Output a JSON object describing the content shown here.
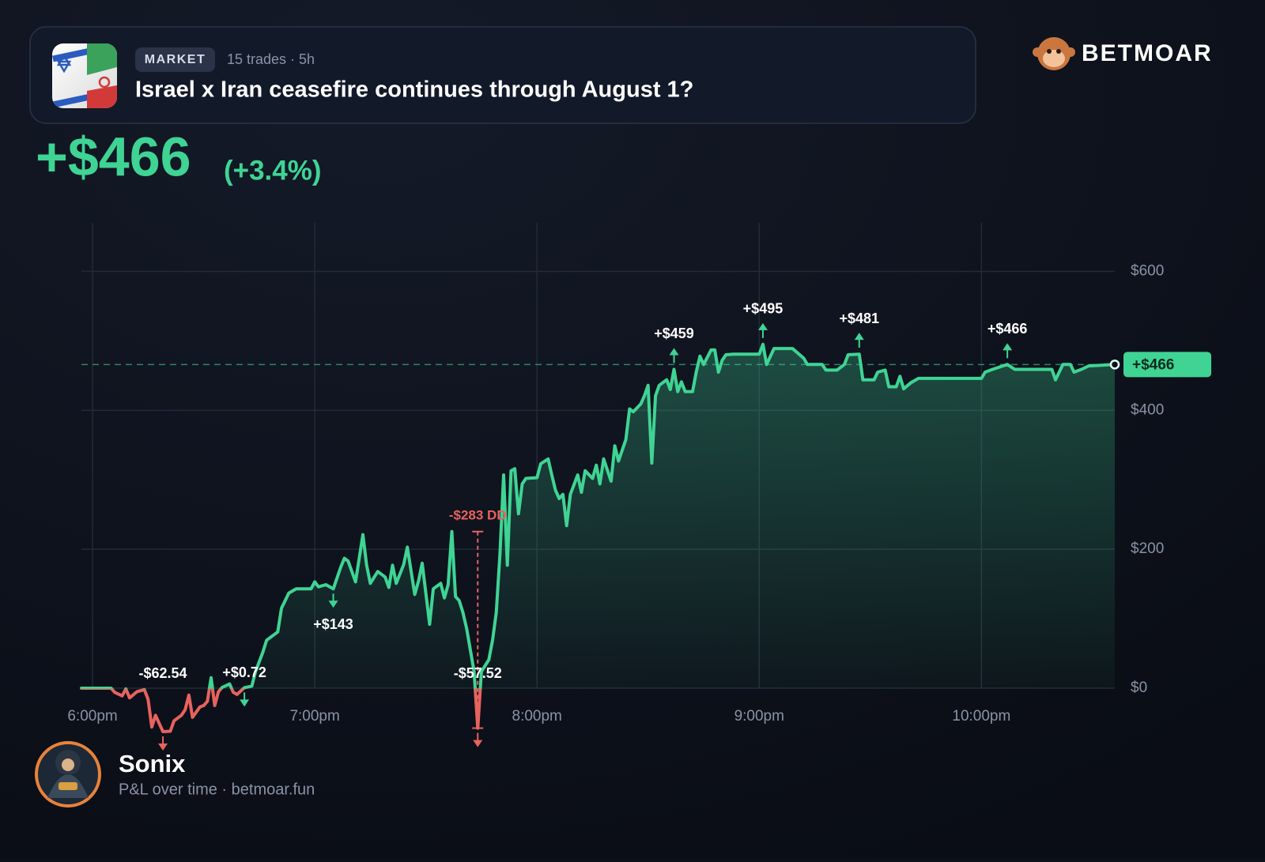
{
  "brand": "BETMOAR",
  "market": {
    "badge": "MARKET",
    "meta": "15 trades · 5h",
    "title": "Israel x Iran ceasefire continues through August 1?"
  },
  "pnl": {
    "amount": "+$466",
    "percent": "(+3.4%)"
  },
  "user": {
    "name": "Sonix",
    "subtitle": "P&L over time · betmoar.fun"
  },
  "chart_data": {
    "type": "line",
    "x": [
      "17:57",
      "18:00",
      "18:05",
      "18:06",
      "18:08",
      "18:09",
      "18:10",
      "18:12",
      "18:14",
      "18:15",
      "18:16",
      "18:17",
      "18:19",
      "18:21",
      "18:22",
      "18:24",
      "18:25",
      "18:26",
      "18:27",
      "18:29",
      "18:30",
      "18:31",
      "18:32",
      "18:33",
      "18:34",
      "18:35",
      "18:37",
      "18:38",
      "18:39",
      "18:41",
      "18:43",
      "18:44",
      "18:46",
      "18:47",
      "18:50",
      "18:51",
      "18:53",
      "18:55",
      "18:59",
      "19:00",
      "19:01",
      "19:03",
      "19:05",
      "19:07",
      "19:08",
      "19:09",
      "19:11",
      "19:13",
      "19:14",
      "19:15",
      "19:17",
      "19:19",
      "19:20",
      "19:21",
      "19:22",
      "19:24",
      "19:25",
      "19:27",
      "19:28",
      "19:29",
      "19:31",
      "19:32",
      "19:34",
      "19:35",
      "19:36",
      "19:37",
      "19:38",
      "19:39",
      "19:40",
      "19:41",
      "19:43",
      "19:44",
      "19:45",
      "19:47",
      "19:48",
      "19:49",
      "19:50",
      "19:51",
      "19:52",
      "19:53",
      "19:54",
      "19:55",
      "19:56",
      "19:57",
      "20:00",
      "20:01",
      "20:03",
      "20:04",
      "20:05",
      "20:06",
      "20:07",
      "20:08",
      "20:09",
      "20:11",
      "20:12",
      "20:13",
      "20:15",
      "20:16",
      "20:17",
      "20:18",
      "20:20",
      "20:21",
      "20:22",
      "20:24",
      "20:25",
      "20:26",
      "20:28",
      "20:29",
      "20:30",
      "20:31",
      "20:32",
      "20:33",
      "20:35",
      "20:36",
      "20:37",
      "20:38",
      "20:39",
      "20:40",
      "20:42",
      "20:43",
      "20:44",
      "20:45",
      "20:47",
      "20:48",
      "20:49",
      "20:50",
      "20:51",
      "20:53",
      "21:00",
      "21:01",
      "21:02",
      "21:04",
      "21:09",
      "21:12",
      "21:13",
      "21:17",
      "21:18",
      "21:21",
      "21:23",
      "21:24",
      "21:27",
      "21:28",
      "21:31",
      "21:32",
      "21:34",
      "21:35",
      "21:37",
      "21:38",
      "21:39",
      "21:41",
      "21:43",
      "22:00",
      "22:01",
      "22:03",
      "22:07",
      "22:09",
      "22:19",
      "22:20",
      "22:21",
      "22:22",
      "22:24",
      "22:25",
      "22:27",
      "22:29",
      "22:36"
    ],
    "values": [
      0,
      0,
      0,
      -6,
      -11,
      -1,
      -14,
      -5,
      -2,
      -16,
      -56,
      -39,
      -62.54,
      -62,
      -47,
      -39,
      -31,
      -10,
      -42,
      -27,
      -25,
      -19,
      15,
      -25,
      -5,
      1,
      6,
      -6,
      -9,
      0.72,
      3,
      24,
      52,
      69,
      81,
      115,
      137,
      143,
      143,
      153,
      146,
      149,
      143,
      174,
      187,
      183,
      153,
      221,
      177,
      151,
      168,
      160,
      145,
      177,
      151,
      178,
      203,
      135,
      154,
      180,
      92,
      143,
      151,
      130,
      149,
      225.48,
      132,
      126,
      109,
      86,
      24,
      -57.52,
      24,
      41,
      69,
      109,
      194,
      307,
      177,
      313,
      316,
      251,
      294,
      302,
      303,
      323,
      330,
      307,
      285,
      273,
      279,
      234,
      279,
      307,
      282,
      313,
      302,
      321,
      294,
      330,
      298,
      349,
      327,
      358,
      402,
      398,
      409,
      421,
      436,
      324,
      421,
      436,
      444,
      430,
      459,
      427,
      441,
      427,
      427,
      455,
      478,
      466,
      487,
      487,
      455,
      472,
      480,
      481,
      481,
      495,
      466,
      489,
      489,
      475,
      466,
      466,
      458,
      458,
      466,
      480,
      481,
      444,
      444,
      455,
      458,
      434,
      434,
      449,
      431,
      440,
      446,
      446,
      455,
      459,
      466,
      459,
      459,
      444,
      455,
      466,
      466,
      455,
      459,
      464,
      466
    ],
    "color": "#3fd494",
    "negative_color": "#e8625e",
    "xlim": [
      "17:57",
      "22:36"
    ],
    "xticks": [
      {
        "value": "18:00",
        "label": "6:00pm"
      },
      {
        "value": "19:00",
        "label": "7:00pm"
      },
      {
        "value": "20:00",
        "label": "8:00pm"
      },
      {
        "value": "21:00",
        "label": "9:00pm"
      },
      {
        "value": "22:00",
        "label": "10:00pm"
      }
    ],
    "ylim": [
      0,
      670
    ],
    "yticks": [
      {
        "value": 0,
        "label": "$0"
      },
      {
        "value": 200,
        "label": "$200"
      },
      {
        "value": 400,
        "label": "$400"
      },
      {
        "value": 600,
        "label": "$600"
      }
    ],
    "grid": true,
    "annotations": [
      {
        "x": "18:19",
        "value": -62.54,
        "label": "-$62.54",
        "marker": "down",
        "label_side": "above"
      },
      {
        "x": "18:41",
        "value": 0.72,
        "label": "+$0.72",
        "marker": "down",
        "label_side": "above"
      },
      {
        "x": "19:05",
        "value": 143,
        "label": "+$143",
        "marker": "down",
        "label_side": "below"
      },
      {
        "x": "19:44",
        "value": -57.52,
        "label": "-$57.52",
        "marker": "down",
        "label_side": "above"
      },
      {
        "x": "20:37",
        "value": 459,
        "label": "+$459",
        "marker": "up",
        "label_side": "above"
      },
      {
        "x": "21:01",
        "value": 495,
        "label": "+$495",
        "marker": "up",
        "label_side": "above"
      },
      {
        "x": "21:27",
        "value": 481,
        "label": "+$481",
        "marker": "up",
        "label_side": "above"
      },
      {
        "x": "22:07",
        "value": 466,
        "label": "+$466",
        "marker": "up",
        "label_side": "above"
      }
    ],
    "drawdown": {
      "x": "19:44",
      "value": -283,
      "low": -57.52,
      "label": "-$283 DD"
    },
    "last": {
      "value": 466,
      "label": "+$466"
    }
  }
}
